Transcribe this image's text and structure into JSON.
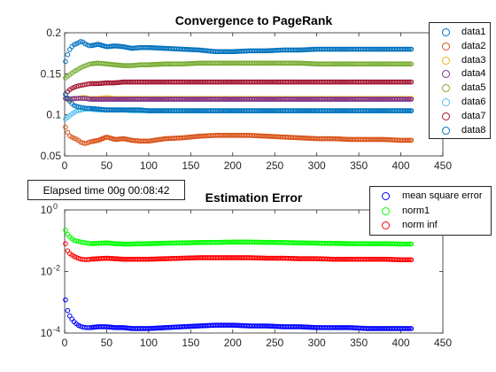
{
  "status": {
    "elapsed_text": "Elapsed time 00g 00:08:42"
  },
  "chart_data": [
    {
      "type": "scatter",
      "title": "Convergence to PageRank",
      "xlabel": "",
      "ylabel": "",
      "xlim": [
        0,
        450
      ],
      "ylim": [
        0.05,
        0.2
      ],
      "xticks": [
        0,
        50,
        100,
        150,
        200,
        250,
        300,
        350,
        400,
        450
      ],
      "yticks": [
        0.05,
        0.1,
        0.15,
        0.2
      ],
      "ytick_labels": [
        "0.05",
        "0.1",
        "0.15",
        "0.2"
      ],
      "grid": false,
      "legend_position": "top-right",
      "x": [
        1,
        5,
        10,
        15,
        20,
        25,
        30,
        40,
        50,
        60,
        70,
        80,
        90,
        100,
        120,
        140,
        160,
        180,
        200,
        220,
        240,
        260,
        280,
        300,
        320,
        340,
        360,
        380,
        400,
        413
      ],
      "series": [
        {
          "name": "data1",
          "color": "#0072BD",
          "values": [
            0.165,
            0.178,
            0.185,
            0.187,
            0.19,
            0.186,
            0.184,
            0.186,
            0.183,
            0.184,
            0.183,
            0.181,
            0.182,
            0.182,
            0.181,
            0.18,
            0.179,
            0.177,
            0.177,
            0.178,
            0.178,
            0.179,
            0.179,
            0.18,
            0.18,
            0.18,
            0.18,
            0.18,
            0.18,
            0.18
          ]
        },
        {
          "name": "data2",
          "color": "#D95319",
          "values": [
            0.085,
            0.075,
            0.072,
            0.07,
            0.066,
            0.065,
            0.067,
            0.069,
            0.073,
            0.07,
            0.071,
            0.069,
            0.068,
            0.068,
            0.071,
            0.072,
            0.074,
            0.075,
            0.075,
            0.075,
            0.074,
            0.073,
            0.072,
            0.071,
            0.071,
            0.07,
            0.07,
            0.07,
            0.069,
            0.069
          ]
        },
        {
          "name": "data3",
          "color": "#EDB120",
          "values": [
            0.12,
            0.118,
            0.119,
            0.12,
            0.121,
            0.121,
            0.12,
            0.12,
            0.121,
            0.12,
            0.12,
            0.12,
            0.12,
            0.12,
            0.12,
            0.12,
            0.12,
            0.12,
            0.12,
            0.12,
            0.12,
            0.12,
            0.12,
            0.12,
            0.12,
            0.12,
            0.12,
            0.12,
            0.12,
            0.12
          ]
        },
        {
          "name": "data4",
          "color": "#7E2F8E",
          "values": [
            0.12,
            0.119,
            0.12,
            0.12,
            0.12,
            0.12,
            0.119,
            0.119,
            0.119,
            0.119,
            0.119,
            0.119,
            0.119,
            0.119,
            0.119,
            0.119,
            0.119,
            0.119,
            0.119,
            0.119,
            0.119,
            0.119,
            0.119,
            0.119,
            0.119,
            0.119,
            0.119,
            0.119,
            0.119,
            0.119
          ]
        },
        {
          "name": "data5",
          "color": "#77AC30",
          "values": [
            0.145,
            0.148,
            0.152,
            0.155,
            0.158,
            0.16,
            0.162,
            0.163,
            0.162,
            0.161,
            0.16,
            0.16,
            0.161,
            0.161,
            0.162,
            0.162,
            0.163,
            0.163,
            0.163,
            0.163,
            0.163,
            0.163,
            0.163,
            0.162,
            0.162,
            0.162,
            0.162,
            0.162,
            0.162,
            0.162
          ]
        },
        {
          "name": "data6",
          "color": "#4DBEEE",
          "values": [
            0.095,
            0.098,
            0.102,
            0.105,
            0.106,
            0.107,
            0.107,
            0.106,
            0.106,
            0.106,
            0.106,
            0.105,
            0.105,
            0.105,
            0.105,
            0.105,
            0.105,
            0.105,
            0.105,
            0.105,
            0.105,
            0.105,
            0.105,
            0.105,
            0.105,
            0.105,
            0.105,
            0.105,
            0.105,
            0.105
          ]
        },
        {
          "name": "data7",
          "color": "#A2142F",
          "values": [
            0.125,
            0.13,
            0.133,
            0.135,
            0.136,
            0.137,
            0.138,
            0.138,
            0.139,
            0.139,
            0.14,
            0.14,
            0.14,
            0.14,
            0.14,
            0.14,
            0.14,
            0.14,
            0.14,
            0.14,
            0.14,
            0.14,
            0.14,
            0.14,
            0.14,
            0.14,
            0.14,
            0.14,
            0.14,
            0.14
          ]
        },
        {
          "name": "data8",
          "color": "#0072BD",
          "values": [
            0.125,
            0.118,
            0.112,
            0.11,
            0.109,
            0.108,
            0.108,
            0.107,
            0.106,
            0.106,
            0.106,
            0.106,
            0.106,
            0.105,
            0.105,
            0.105,
            0.105,
            0.105,
            0.105,
            0.105,
            0.105,
            0.105,
            0.105,
            0.105,
            0.105,
            0.105,
            0.105,
            0.105,
            0.105,
            0.105
          ]
        }
      ]
    },
    {
      "type": "scatter",
      "title": "Estimation Error",
      "xlabel": "",
      "ylabel": "",
      "xlim": [
        0,
        450
      ],
      "ylim": [
        0.0001,
        1
      ],
      "yscale": "log",
      "xticks": [
        0,
        50,
        100,
        150,
        200,
        250,
        300,
        350,
        400,
        450
      ],
      "yticks": [
        0.0001,
        0.01,
        1
      ],
      "ytick_labels": [
        "10",
        "10",
        "10"
      ],
      "ytick_exponents": [
        "-4",
        "-2",
        "0"
      ],
      "grid": false,
      "legend_position": "top-right",
      "x": [
        1,
        3,
        5,
        8,
        12,
        16,
        20,
        25,
        30,
        40,
        50,
        60,
        70,
        80,
        90,
        100,
        120,
        140,
        160,
        180,
        200,
        220,
        240,
        260,
        280,
        300,
        320,
        340,
        360,
        380,
        400,
        413
      ],
      "series": [
        {
          "name": "mean square error",
          "color": "#0000FF",
          "values": [
            0.0012,
            0.0006,
            0.0004,
            0.0003,
            0.00022,
            0.00018,
            0.00016,
            0.00015,
            0.00015,
            0.00016,
            0.00016,
            0.00015,
            0.00015,
            0.00014,
            0.00014,
            0.00014,
            0.00015,
            0.00016,
            0.00017,
            0.00018,
            0.00018,
            0.00017,
            0.00017,
            0.00016,
            0.00016,
            0.00015,
            0.00015,
            0.00015,
            0.00014,
            0.00014,
            0.00014,
            0.00014
          ]
        },
        {
          "name": "norm1",
          "color": "#00FF00",
          "values": [
            0.22,
            0.17,
            0.14,
            0.12,
            0.1,
            0.095,
            0.09,
            0.085,
            0.08,
            0.082,
            0.085,
            0.08,
            0.078,
            0.078,
            0.08,
            0.08,
            0.083,
            0.085,
            0.087,
            0.088,
            0.09,
            0.09,
            0.088,
            0.087,
            0.085,
            0.083,
            0.082,
            0.08,
            0.08,
            0.08,
            0.078,
            0.078
          ]
        },
        {
          "name": "norm inf",
          "color": "#FF0000",
          "values": [
            0.08,
            0.05,
            0.04,
            0.035,
            0.03,
            0.027,
            0.025,
            0.024,
            0.025,
            0.026,
            0.027,
            0.026,
            0.025,
            0.025,
            0.025,
            0.025,
            0.026,
            0.027,
            0.028,
            0.028,
            0.028,
            0.028,
            0.027,
            0.027,
            0.026,
            0.026,
            0.025,
            0.025,
            0.025,
            0.025,
            0.024,
            0.024
          ]
        }
      ]
    }
  ]
}
